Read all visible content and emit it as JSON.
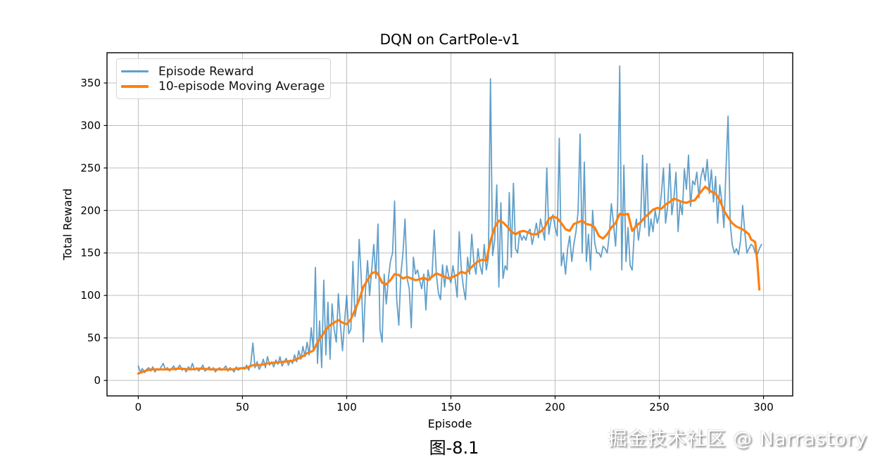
{
  "figure": {
    "caption": "图-8.1",
    "watermark": "掘金技术社区 @ Narrastory"
  },
  "chart_data": {
    "type": "line",
    "title": "DQN on CartPole-v1",
    "xlabel": "Episode",
    "ylabel": "Total Reward",
    "xlim": [
      -15,
      314
    ],
    "ylim": [
      -18.2,
      385.6
    ],
    "x_ticks": [
      0,
      50,
      100,
      150,
      200,
      250,
      300
    ],
    "y_ticks": [
      0,
      50,
      100,
      150,
      200,
      250,
      300,
      350
    ],
    "grid": true,
    "grid_color": "#bfbfbf",
    "background": "#ffffff",
    "legend_position": "upper left",
    "series": [
      {
        "name": "Episode Reward",
        "color": "#1f77b4",
        "opacity": 0.7,
        "width": 1.8,
        "x_start": 0,
        "values": [
          17,
          10,
          14,
          9,
          13,
          15,
          11,
          16,
          10,
          14,
          12,
          16,
          20,
          13,
          15,
          11,
          14,
          17,
          12,
          15,
          18,
          12,
          14,
          10,
          16,
          13,
          20,
          12,
          15,
          11,
          14,
          18,
          11,
          13,
          16,
          12,
          15,
          10,
          13,
          15,
          12,
          14,
          17,
          11,
          15,
          13,
          10,
          16,
          12,
          14,
          15,
          13,
          18,
          12,
          20,
          44,
          15,
          22,
          13,
          18,
          25,
          15,
          28,
          18,
          22,
          16,
          24,
          19,
          28,
          17,
          22,
          26,
          18,
          24,
          20,
          30,
          22,
          35,
          25,
          40,
          28,
          45,
          30,
          62,
          35,
          133,
          20,
          70,
          15,
          118,
          30,
          92,
          25,
          90,
          60,
          45,
          102,
          65,
          35,
          70,
          100,
          55,
          60,
          140,
          75,
          90,
          166,
          120,
          45,
          105,
          141,
          100,
          130,
          160,
          120,
          184,
          60,
          45,
          125,
          90,
          120,
          140,
          150,
          211,
          95,
          65,
          125,
          150,
          190,
          120,
          108,
          62,
          145,
          125,
          130,
          118,
          108,
          125,
          83,
          130,
          118,
          125,
          177,
          125,
          103,
          95,
          136,
          110,
          135,
          122,
          115,
          135,
          120,
          98,
          175,
          130,
          110,
          95,
          145,
          125,
          172,
          140,
          125,
          155,
          135,
          125,
          160,
          130,
          145,
          355,
          147,
          165,
          230,
          110,
          209,
          120,
          135,
          130,
          221,
          145,
          232,
          155,
          150,
          175,
          165,
          170,
          165,
          175,
          178,
          160,
          172,
          185,
          168,
          190,
          178,
          165,
          250,
          172,
          188,
          195,
          180,
          170,
          285,
          135,
          150,
          125,
          155,
          170,
          140,
          160,
          175,
          198,
          290,
          150,
          257,
          140,
          172,
          130,
          200,
          162,
          150,
          150,
          145,
          158,
          155,
          150,
          172,
          208,
          185,
          158,
          205,
          370,
          130,
          253,
          140,
          180,
          135,
          130,
          175,
          190,
          165,
          185,
          265,
          180,
          255,
          170,
          190,
          175,
          200,
          185,
          195,
          220,
          250,
          185,
          205,
          255,
          195,
          215,
          245,
          175,
          210,
          195,
          249,
          225,
          265,
          205,
          235,
          230,
          245,
          215,
          240,
          250,
          235,
          260,
          220,
          248,
          210,
          240,
          185,
          230,
          211,
          180,
          250,
          311,
          185,
          160,
          150,
          155,
          148,
          165,
          206,
          175,
          150,
          155,
          160,
          158,
          150,
          148,
          155,
          160
        ]
      },
      {
        "name": "10-episode Moving Average",
        "color": "#ff7f0e",
        "opacity": 1,
        "width": 3.2,
        "points": [
          [
            0,
            8
          ],
          [
            3,
            11
          ],
          [
            6,
            13
          ],
          [
            10,
            13
          ],
          [
            15,
            13
          ],
          [
            20,
            14
          ],
          [
            25,
            13
          ],
          [
            30,
            14
          ],
          [
            35,
            13
          ],
          [
            40,
            13
          ],
          [
            45,
            13
          ],
          [
            48,
            14
          ],
          [
            52,
            15
          ],
          [
            55,
            18
          ],
          [
            58,
            18
          ],
          [
            62,
            20
          ],
          [
            66,
            21
          ],
          [
            70,
            22
          ],
          [
            74,
            23
          ],
          [
            78,
            27
          ],
          [
            81,
            32
          ],
          [
            84,
            35
          ],
          [
            86,
            45
          ],
          [
            88,
            52
          ],
          [
            90,
            60
          ],
          [
            92,
            65
          ],
          [
            94,
            68
          ],
          [
            96,
            71
          ],
          [
            98,
            68
          ],
          [
            100,
            66
          ],
          [
            102,
            72
          ],
          [
            104,
            83
          ],
          [
            106,
            95
          ],
          [
            108,
            110
          ],
          [
            110,
            118
          ],
          [
            112,
            126
          ],
          [
            114,
            128
          ],
          [
            115,
            125
          ],
          [
            117,
            115
          ],
          [
            119,
            113
          ],
          [
            121,
            118
          ],
          [
            123,
            125
          ],
          [
            125,
            124
          ],
          [
            127,
            120
          ],
          [
            129,
            122
          ],
          [
            131,
            120
          ],
          [
            133,
            118
          ],
          [
            135,
            119
          ],
          [
            137,
            121
          ],
          [
            139,
            118
          ],
          [
            141,
            122
          ],
          [
            143,
            126
          ],
          [
            145,
            124
          ],
          [
            147,
            122
          ],
          [
            149,
            120
          ],
          [
            151,
            122
          ],
          [
            153,
            124
          ],
          [
            155,
            128
          ],
          [
            157,
            126
          ],
          [
            159,
            131
          ],
          [
            161,
            136
          ],
          [
            163,
            140
          ],
          [
            165,
            142
          ],
          [
            167,
            141
          ],
          [
            169,
            164
          ],
          [
            171,
            180
          ],
          [
            173,
            188
          ],
          [
            175,
            186
          ],
          [
            177,
            181
          ],
          [
            179,
            175
          ],
          [
            181,
            172
          ],
          [
            183,
            175
          ],
          [
            185,
            176
          ],
          [
            187,
            174
          ],
          [
            189,
            172
          ],
          [
            191,
            172
          ],
          [
            193,
            175
          ],
          [
            195,
            180
          ],
          [
            197,
            190
          ],
          [
            199,
            193
          ],
          [
            201,
            191
          ],
          [
            203,
            185
          ],
          [
            205,
            178
          ],
          [
            207,
            176
          ],
          [
            209,
            184
          ],
          [
            211,
            186
          ],
          [
            213,
            188
          ],
          [
            215,
            184
          ],
          [
            217,
            183
          ],
          [
            219,
            180
          ],
          [
            221,
            170
          ],
          [
            223,
            167
          ],
          [
            225,
            172
          ],
          [
            227,
            180
          ],
          [
            229,
            185
          ],
          [
            231,
            196
          ],
          [
            233,
            195
          ],
          [
            235,
            196
          ],
          [
            237,
            176
          ],
          [
            239,
            182
          ],
          [
            241,
            186
          ],
          [
            243,
            192
          ],
          [
            245,
            196
          ],
          [
            247,
            201
          ],
          [
            249,
            203
          ],
          [
            251,
            202
          ],
          [
            253,
            207
          ],
          [
            255,
            210
          ],
          [
            257,
            214
          ],
          [
            259,
            212
          ],
          [
            261,
            210
          ],
          [
            263,
            209
          ],
          [
            265,
            211
          ],
          [
            267,
            212
          ],
          [
            269,
            219
          ],
          [
            271,
            225
          ],
          [
            272,
            228
          ],
          [
            273,
            226
          ],
          [
            275,
            222
          ],
          [
            277,
            220
          ],
          [
            279,
            212
          ],
          [
            281,
            200
          ],
          [
            283,
            192
          ],
          [
            285,
            185
          ],
          [
            287,
            181
          ],
          [
            289,
            179
          ],
          [
            291,
            176
          ],
          [
            293,
            172
          ],
          [
            294,
            166
          ],
          [
            296,
            163
          ],
          [
            297,
            140
          ],
          [
            298,
            107
          ]
        ]
      }
    ]
  }
}
